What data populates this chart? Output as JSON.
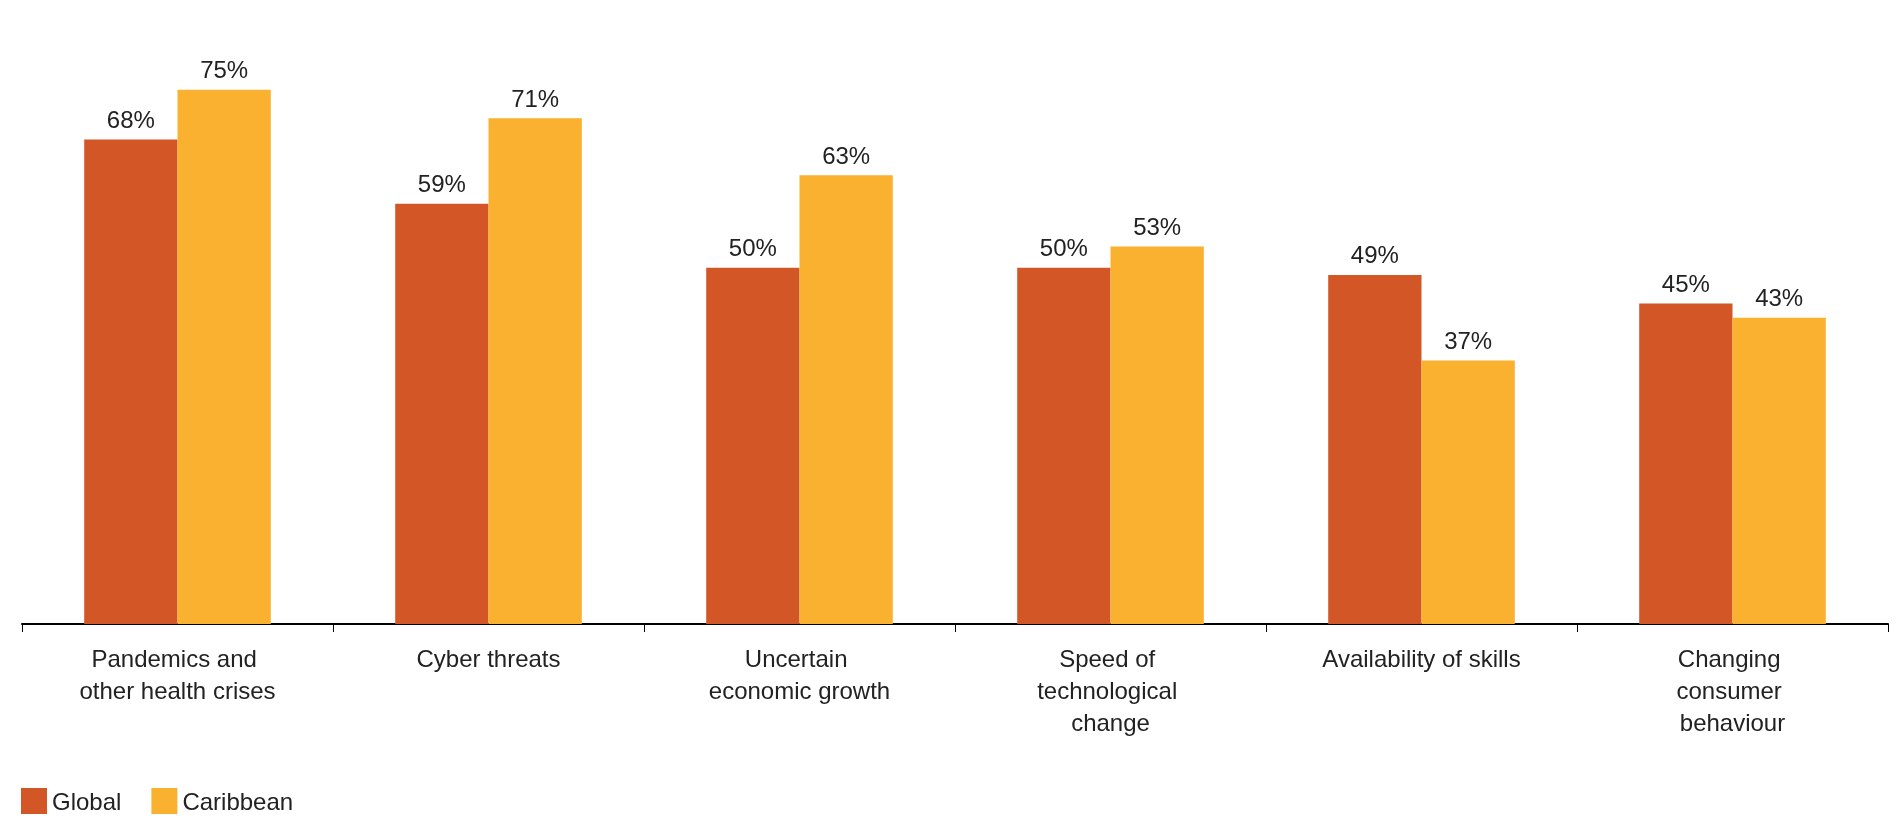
{
  "chart_data": {
    "type": "bar",
    "categories": [
      "Pandemics and other health crises",
      "Cyber threats",
      "Uncertain economic growth",
      "Speed of technological change",
      "Availability of skills",
      "Changing consumer behaviour"
    ],
    "series": [
      {
        "name": "Global",
        "color": "#d35627",
        "values": [
          68,
          59,
          50,
          50,
          49,
          45
        ],
        "value_labels": [
          "68%",
          "59%",
          "50%",
          "50%",
          "49%",
          "45%"
        ]
      },
      {
        "name": "Caribbean",
        "color": "#fab12f",
        "values": [
          75,
          71,
          63,
          53,
          37,
          43
        ],
        "value_labels": [
          "75%",
          "71%",
          "63%",
          "53%",
          "37%",
          "43%"
        ]
      }
    ],
    "legend": "bottom left",
    "grid": false
  }
}
